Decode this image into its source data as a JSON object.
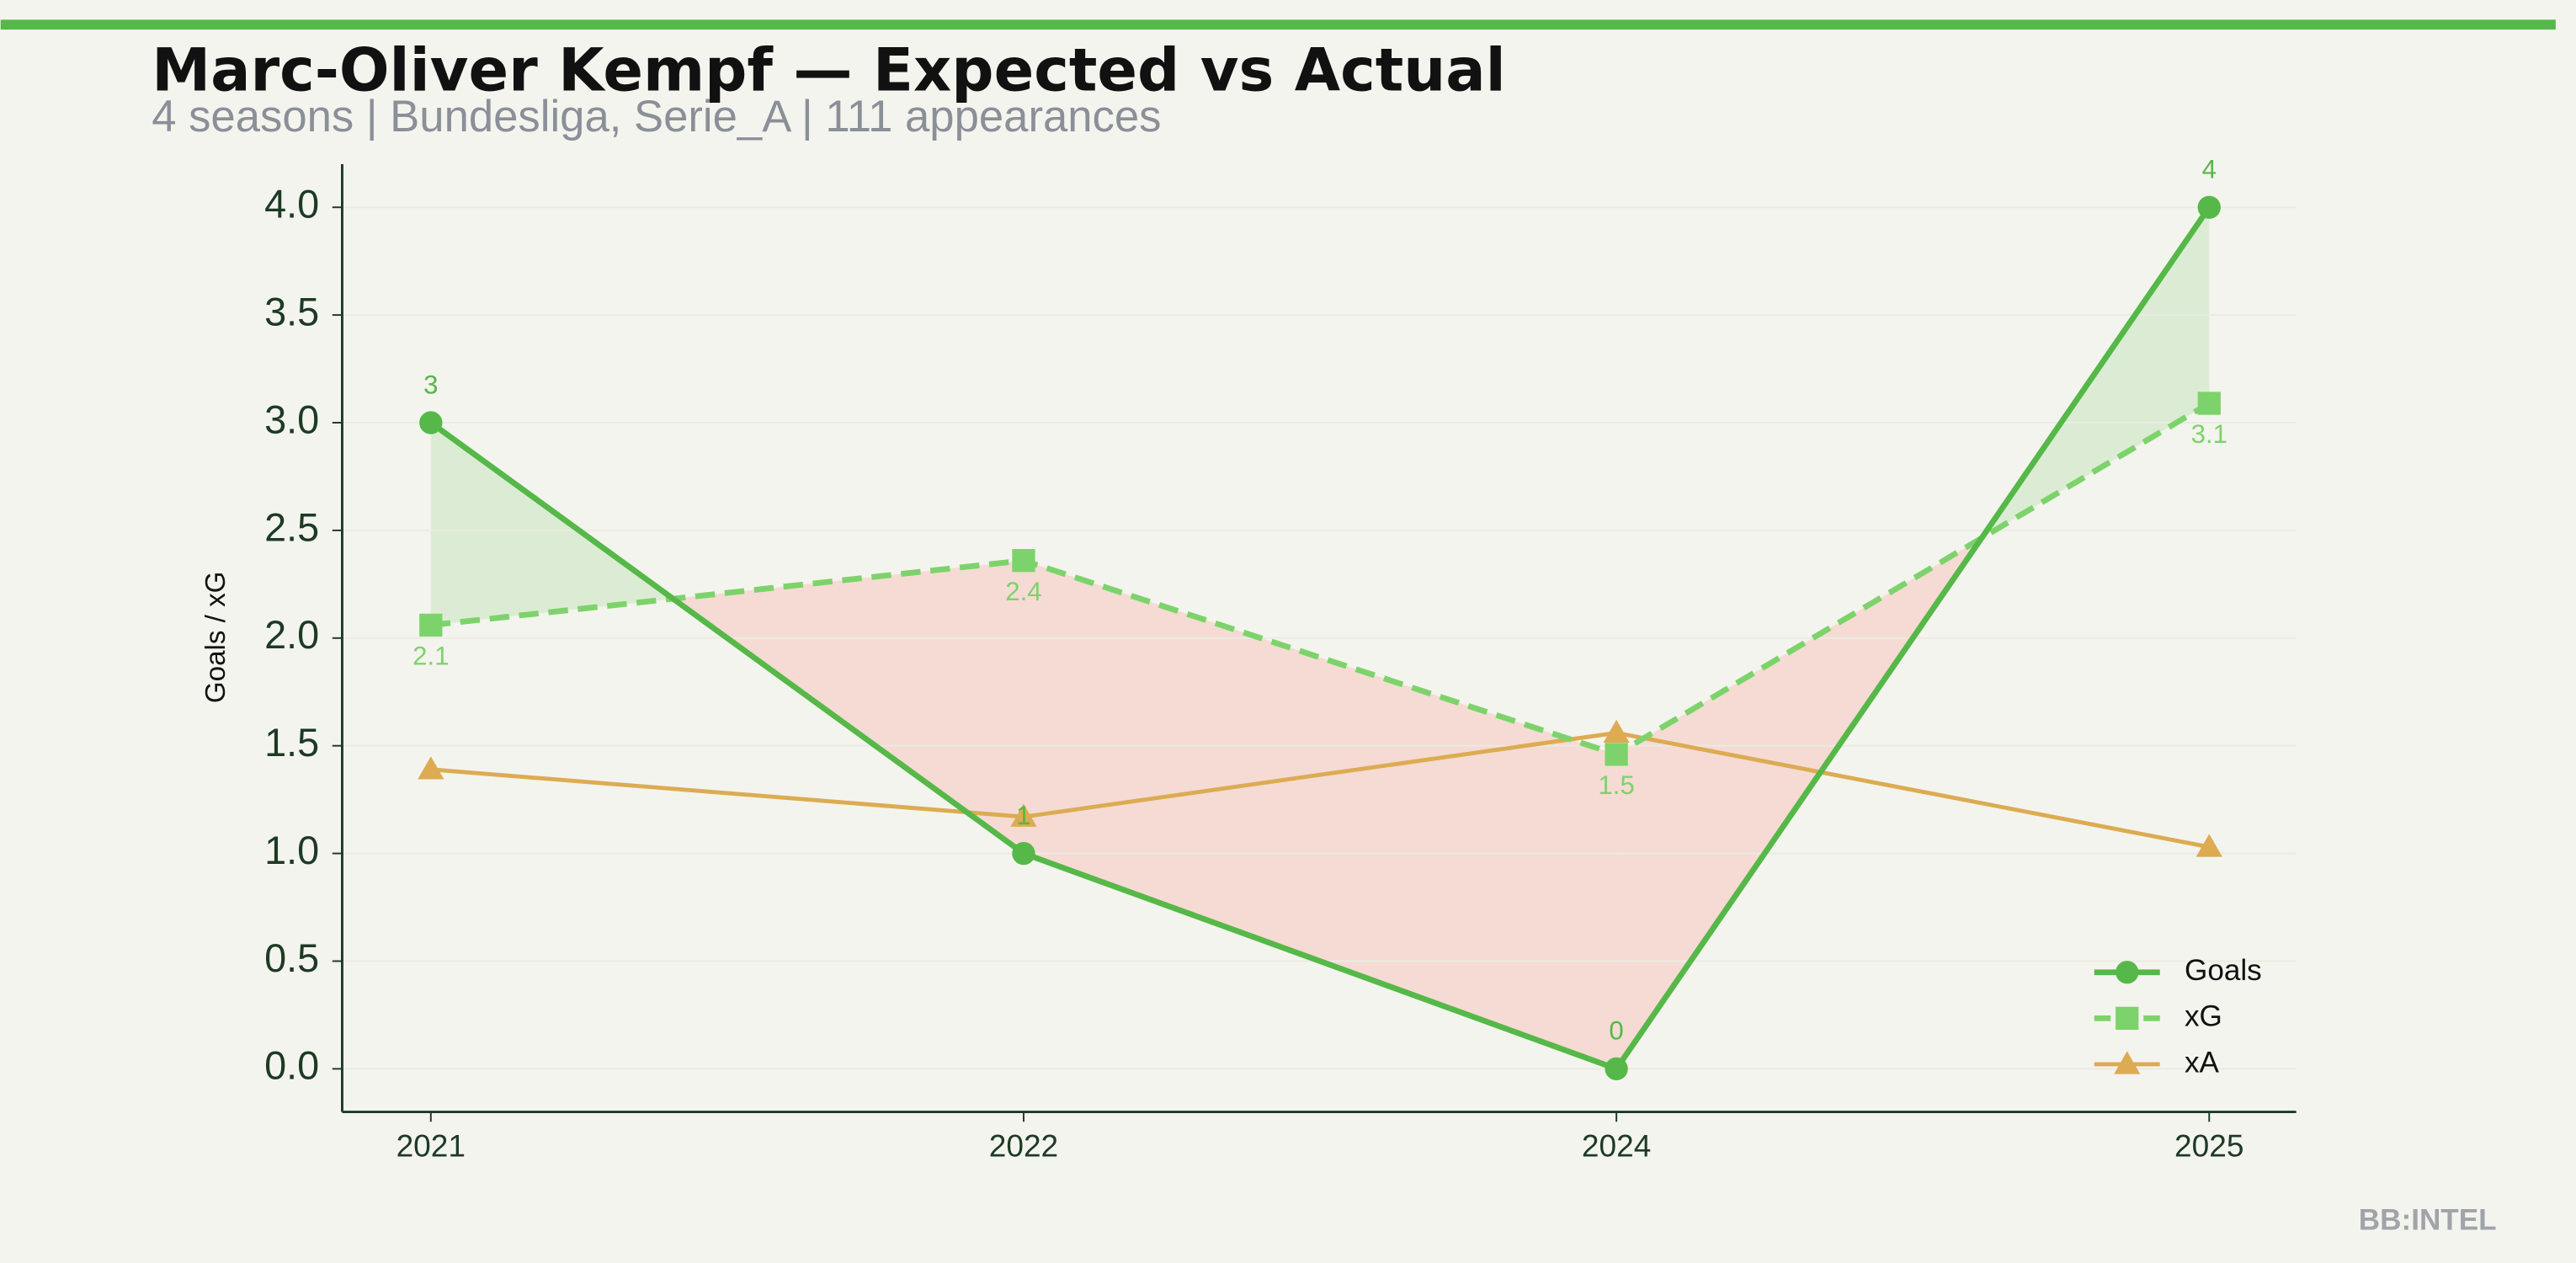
{
  "chart_data": {
    "type": "line",
    "title": "Marc-Oliver Kempf — Expected vs Actual",
    "subtitle": "4 seasons | Bundesliga, Serie_A | 111 appearances",
    "y_label": "Goals / xG",
    "footer": "BB:INTEL",
    "categories": [
      "2021",
      "2022",
      "2024",
      "2025"
    ],
    "series": [
      {
        "name": "Goals",
        "color": "#55b848",
        "values": [
          3,
          1,
          0,
          4
        ]
      },
      {
        "name": "xG",
        "color": "#7dd36b",
        "values": [
          2.06,
          2.36,
          1.46,
          3.09
        ],
        "value_labels": [
          "2.1",
          "2.4",
          "1.5",
          "3.1"
        ]
      },
      {
        "name": "xA",
        "color": "#dcab52",
        "values": [
          1.39,
          1.17,
          1.56,
          1.03
        ]
      }
    ],
    "ylim": [
      -0.2,
      4.2
    ],
    "yticks": [
      {
        "value": 0,
        "label": "0.0"
      },
      {
        "value": 0.5,
        "label": "0.5"
      },
      {
        "value": 1,
        "label": "1.0"
      },
      {
        "value": 1.5,
        "label": "1.5"
      },
      {
        "value": 2,
        "label": "2.0"
      },
      {
        "value": 2.5,
        "label": "2.5"
      },
      {
        "value": 3,
        "label": "3.0"
      },
      {
        "value": 3.5,
        "label": "3.5"
      },
      {
        "value": 4,
        "label": "4.0"
      }
    ],
    "grid": true,
    "legend": "lower right"
  }
}
